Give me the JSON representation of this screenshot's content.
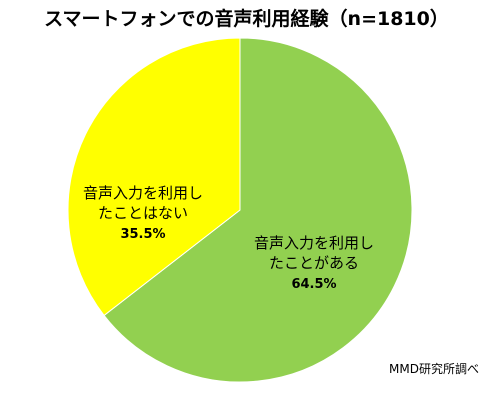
{
  "chart_data": {
    "type": "pie",
    "title": "スマートフォンでの音声利用経験（n=1810）",
    "slices": [
      {
        "label_lines": [
          "音声入力を利用し",
          "たことがある"
        ],
        "value": 64.5,
        "value_label": "64.5%",
        "color": "#92d050"
      },
      {
        "label_lines": [
          "音声入力を利用し",
          "たことはない"
        ],
        "value": 35.5,
        "value_label": "35.5%",
        "color": "#ffff00"
      }
    ],
    "start_position": "top",
    "direction": "clockwise",
    "legend": "none"
  },
  "source_note": "MMD研究所調べ"
}
